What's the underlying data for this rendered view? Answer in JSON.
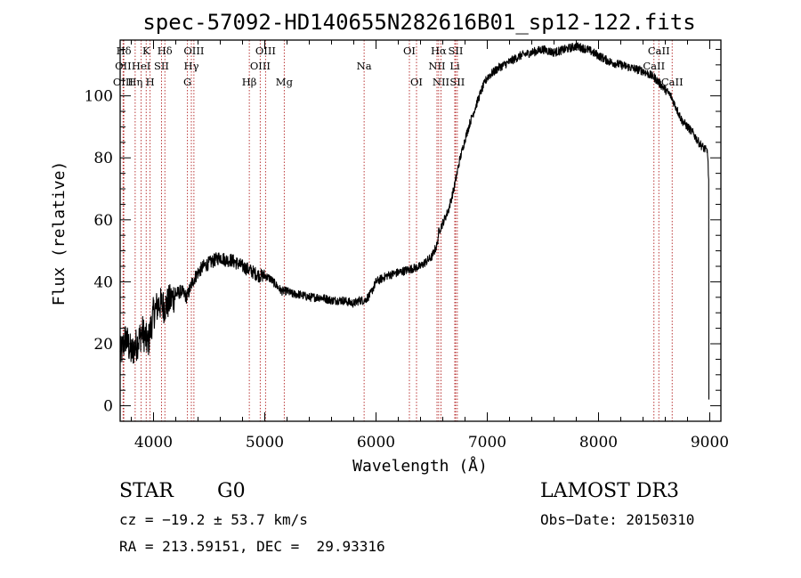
{
  "chart_data": {
    "type": "line",
    "title": "spec-57092-HD140655N282616B01_sp12-122.fits",
    "xlabel": "Wavelength (Å)",
    "ylabel": "Flux (relative)",
    "xlim": [
      3700,
      9100
    ],
    "ylim": [
      -5,
      118
    ],
    "xticks": [
      4000,
      5000,
      6000,
      7000,
      8000,
      9000
    ],
    "yticks": [
      0,
      20,
      40,
      60,
      80,
      100
    ],
    "grid": false,
    "series": [
      {
        "name": "spectrum",
        "x": [
          3700,
          3750,
          3800,
          3850,
          3900,
          3950,
          4000,
          4050,
          4100,
          4150,
          4200,
          4250,
          4300,
          4350,
          4400,
          4450,
          4500,
          4550,
          4600,
          4650,
          4700,
          4750,
          4800,
          4850,
          4900,
          4950,
          5000,
          5050,
          5100,
          5150,
          5200,
          5250,
          5300,
          5400,
          5500,
          5600,
          5700,
          5800,
          5850,
          5900,
          5950,
          6000,
          6100,
          6200,
          6300,
          6400,
          6500,
          6550,
          6563,
          6600,
          6650,
          6700,
          6750,
          6800,
          6850,
          6900,
          6950,
          7000,
          7100,
          7200,
          7300,
          7400,
          7500,
          7600,
          7700,
          7800,
          7900,
          8000,
          8100,
          8200,
          8300,
          8400,
          8500,
          8550,
          8600,
          8650,
          8700,
          8750,
          8800,
          8850,
          8900,
          8950,
          8980,
          8990
        ],
        "y": [
          16,
          22,
          17,
          20,
          24,
          20,
          30,
          33,
          32,
          34,
          36,
          37,
          35,
          40,
          43,
          45,
          46,
          47,
          48,
          47,
          47,
          46,
          45,
          44,
          43,
          42,
          42,
          41,
          39,
          37,
          37,
          36,
          36,
          35,
          35,
          34,
          34,
          33,
          34,
          34,
          36,
          40,
          42,
          43,
          44,
          45,
          48,
          52,
          56,
          59,
          63,
          70,
          79,
          86,
          92,
          97,
          102,
          106,
          109,
          111,
          113,
          114,
          115,
          114,
          115,
          116,
          115,
          113,
          111,
          110,
          109,
          108,
          106,
          104,
          102,
          100,
          96,
          92,
          90,
          88,
          85,
          83,
          82,
          73
        ]
      }
    ],
    "spectral_lines": [
      {
        "label": "Hδ",
        "wavelength": 3733,
        "row": 1
      },
      {
        "label": "OII",
        "wavelength": 3727,
        "row": 2
      },
      {
        "label": "OIII",
        "wavelength": 3727,
        "row": 3
      },
      {
        "label": "K",
        "wavelength": 3934,
        "row": 1
      },
      {
        "label": "HeI",
        "wavelength": 3889,
        "row": 2
      },
      {
        "label": "Hη",
        "wavelength": 3835,
        "row": 3
      },
      {
        "label": "SII",
        "wavelength": 4072,
        "row": 2
      },
      {
        "label": "H",
        "wavelength": 3969,
        "row": 3
      },
      {
        "label": "Hδ",
        "wavelength": 4102,
        "row": 1
      },
      {
        "label": "OIII",
        "wavelength": 4363,
        "row": 1
      },
      {
        "label": "Hγ",
        "wavelength": 4340,
        "row": 2
      },
      {
        "label": "G",
        "wavelength": 4305,
        "row": 3
      },
      {
        "label": "OIII",
        "wavelength": 5007,
        "row": 1
      },
      {
        "label": "OIII",
        "wavelength": 4959,
        "row": 2
      },
      {
        "label": "Hβ",
        "wavelength": 4861,
        "row": 3
      },
      {
        "label": "Mg",
        "wavelength": 5175,
        "row": 3
      },
      {
        "label": "Na",
        "wavelength": 5893,
        "row": 2
      },
      {
        "label": "OI",
        "wavelength": 6300,
        "row": 1
      },
      {
        "label": "OI",
        "wavelength": 6364,
        "row": 3
      },
      {
        "label": "Hα",
        "wavelength": 6563,
        "row": 1
      },
      {
        "label": "NII",
        "wavelength": 6548,
        "row": 2
      },
      {
        "label": "NII",
        "wavelength": 6584,
        "row": 3
      },
      {
        "label": "SII",
        "wavelength": 6716,
        "row": 1
      },
      {
        "label": "Li",
        "wavelength": 6708,
        "row": 2
      },
      {
        "label": "SII",
        "wavelength": 6731,
        "row": 3
      },
      {
        "label": "CaII",
        "wavelength": 8542,
        "row": 1
      },
      {
        "label": "CaII",
        "wavelength": 8498,
        "row": 2
      },
      {
        "label": "CaII",
        "wavelength": 8662,
        "row": 3
      }
    ]
  },
  "info": {
    "class": "STAR",
    "subclass": "G0",
    "survey": "LAMOST DR3",
    "cz": "cz = −19.2 ± 53.7 km/s",
    "obs_date": "Obs−Date: 20150310",
    "coords": "RA = 213.59151, DEC =  29.93316"
  },
  "colors": {
    "spectrum": "#000000",
    "line_marker": "#b22222",
    "axis": "#000000"
  }
}
